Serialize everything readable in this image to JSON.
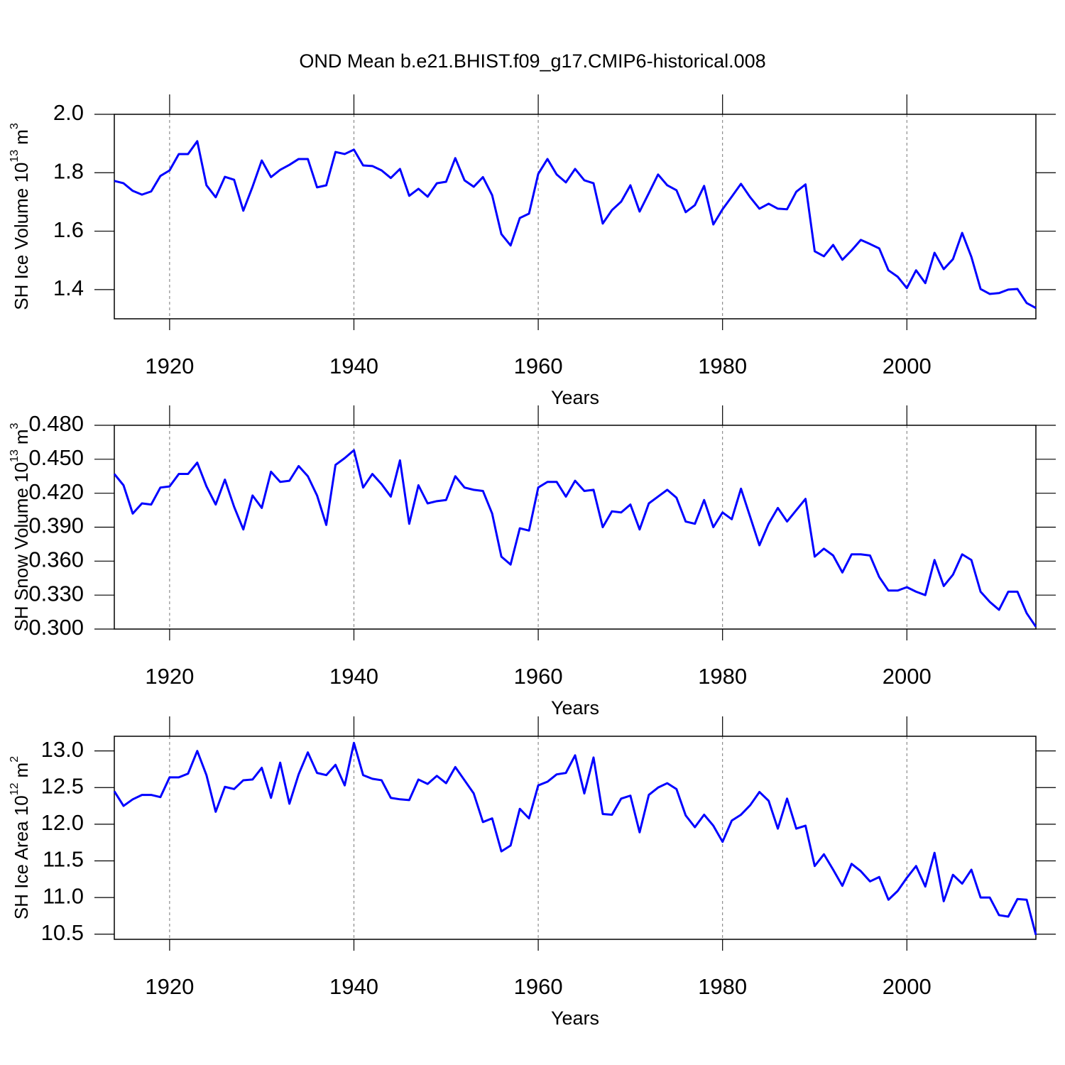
{
  "chart_data": [
    {
      "type": "line",
      "title": "OND Mean b.e21.BHIST.f09_g17.CMIP6-historical.008",
      "ylabel": "SH Ice Volume 10",
      "ylabel_exp": "13",
      "ylabel_unit": "m",
      "ylabel_unit_exp": "3",
      "xlabel": "Years",
      "color": "#0000ff",
      "grid": "x",
      "xlim": [
        1914,
        2014
      ],
      "xticks": [
        1920,
        1940,
        1960,
        1980,
        2000
      ],
      "ylim": [
        1.3,
        2.0
      ],
      "yticks": [
        1.4,
        1.6,
        1.8,
        {
          "value": 2,
          "label": "2.0"
        }
      ],
      "x": [
        1914,
        1915,
        1916,
        1917,
        1918,
        1919,
        1920,
        1921,
        1922,
        1923,
        1924,
        1925,
        1926,
        1927,
        1928,
        1929,
        1930,
        1931,
        1932,
        1933,
        1934,
        1935,
        1936,
        1937,
        1938,
        1939,
        1940,
        1941,
        1942,
        1943,
        1944,
        1945,
        1946,
        1947,
        1948,
        1949,
        1950,
        1951,
        1952,
        1953,
        1954,
        1955,
        1956,
        1957,
        1958,
        1959,
        1960,
        1961,
        1962,
        1963,
        1964,
        1965,
        1966,
        1967,
        1968,
        1969,
        1970,
        1971,
        1972,
        1973,
        1974,
        1975,
        1976,
        1977,
        1978,
        1979,
        1980,
        1981,
        1982,
        1983,
        1984,
        1985,
        1986,
        1987,
        1988,
        1989,
        1990,
        1991,
        1992,
        1993,
        1994,
        1995,
        1996,
        1997,
        1998,
        1999,
        2000,
        2001,
        2002,
        2003,
        2004,
        2005,
        2006,
        2007,
        2008,
        2009,
        2010,
        2011,
        2012,
        2013,
        2014
      ],
      "values": [
        1.772,
        1.764,
        1.738,
        1.725,
        1.736,
        1.789,
        1.808,
        1.864,
        1.864,
        1.908,
        1.757,
        1.716,
        1.786,
        1.776,
        1.67,
        1.752,
        1.842,
        1.785,
        1.81,
        1.827,
        1.847,
        1.847,
        1.75,
        1.757,
        1.871,
        1.864,
        1.879,
        1.825,
        1.823,
        1.808,
        1.782,
        1.813,
        1.721,
        1.745,
        1.718,
        1.764,
        1.769,
        1.85,
        1.774,
        1.752,
        1.785,
        1.723,
        1.59,
        1.551,
        1.645,
        1.66,
        1.796,
        1.847,
        1.794,
        1.767,
        1.813,
        1.774,
        1.764,
        1.626,
        1.672,
        1.701,
        1.757,
        1.667,
        1.73,
        1.794,
        1.757,
        1.74,
        1.665,
        1.689,
        1.755,
        1.623,
        1.675,
        1.718,
        1.762,
        1.716,
        1.677,
        1.694,
        1.677,
        1.675,
        1.735,
        1.76,
        1.531,
        1.514,
        1.553,
        1.502,
        1.534,
        1.57,
        1.556,
        1.541,
        1.466,
        1.444,
        1.405,
        1.466,
        1.422,
        1.526,
        1.47,
        1.504,
        1.594,
        1.512,
        1.402,
        1.385,
        1.388,
        1.4,
        1.402,
        1.354,
        1.337
      ]
    },
    {
      "type": "line",
      "ylabel": "SH Snow Volume 10",
      "ylabel_exp": "13",
      "ylabel_unit": "m",
      "ylabel_unit_exp": "3",
      "xlabel": "Years",
      "color": "#0000ff",
      "grid": "x",
      "xlim": [
        1914,
        2014
      ],
      "xticks": [
        1920,
        1940,
        1960,
        1980,
        2000
      ],
      "ylim": [
        0.3,
        0.48
      ],
      "yticks": [
        {
          "value": 0.3,
          "label": "0.300"
        },
        {
          "value": 0.33,
          "label": "0.330"
        },
        {
          "value": 0.36,
          "label": "0.360"
        },
        {
          "value": 0.39,
          "label": "0.390"
        },
        {
          "value": 0.42,
          "label": "0.420"
        },
        {
          "value": 0.45,
          "label": "0.450"
        },
        {
          "value": 0.48,
          "label": "0.480"
        }
      ],
      "x": [
        1914,
        1915,
        1916,
        1917,
        1918,
        1919,
        1920,
        1921,
        1922,
        1923,
        1924,
        1925,
        1926,
        1927,
        1928,
        1929,
        1930,
        1931,
        1932,
        1933,
        1934,
        1935,
        1936,
        1937,
        1938,
        1939,
        1940,
        1941,
        1942,
        1943,
        1944,
        1945,
        1946,
        1947,
        1948,
        1949,
        1950,
        1951,
        1952,
        1953,
        1954,
        1955,
        1956,
        1957,
        1958,
        1959,
        1960,
        1961,
        1962,
        1963,
        1964,
        1965,
        1966,
        1967,
        1968,
        1969,
        1970,
        1971,
        1972,
        1973,
        1974,
        1975,
        1976,
        1977,
        1978,
        1979,
        1980,
        1981,
        1982,
        1983,
        1984,
        1985,
        1986,
        1987,
        1988,
        1989,
        1990,
        1991,
        1992,
        1993,
        1994,
        1995,
        1996,
        1997,
        1998,
        1999,
        2000,
        2001,
        2002,
        2003,
        2004,
        2005,
        2006,
        2007,
        2008,
        2009,
        2010,
        2011,
        2012,
        2013,
        2014
      ],
      "values": [
        0.437,
        0.427,
        0.402,
        0.411,
        0.41,
        0.425,
        0.426,
        0.437,
        0.437,
        0.447,
        0.426,
        0.41,
        0.432,
        0.408,
        0.388,
        0.418,
        0.407,
        0.439,
        0.43,
        0.431,
        0.444,
        0.435,
        0.418,
        0.392,
        0.445,
        0.451,
        0.458,
        0.425,
        0.437,
        0.428,
        0.417,
        0.449,
        0.393,
        0.427,
        0.411,
        0.413,
        0.414,
        0.435,
        0.425,
        0.423,
        0.422,
        0.402,
        0.364,
        0.357,
        0.389,
        0.387,
        0.425,
        0.43,
        0.43,
        0.417,
        0.431,
        0.422,
        0.423,
        0.39,
        0.404,
        0.403,
        0.41,
        0.388,
        0.411,
        0.417,
        0.423,
        0.416,
        0.395,
        0.393,
        0.414,
        0.39,
        0.403,
        0.397,
        0.424,
        0.399,
        0.374,
        0.393,
        0.407,
        0.395,
        0.405,
        0.415,
        0.364,
        0.371,
        0.365,
        0.35,
        0.366,
        0.366,
        0.365,
        0.346,
        0.334,
        0.334,
        0.337,
        0.333,
        0.33,
        0.361,
        0.338,
        0.348,
        0.366,
        0.361,
        0.333,
        0.324,
        0.317,
        0.333,
        0.333,
        0.314,
        0.302
      ]
    },
    {
      "type": "line",
      "ylabel": "SH Ice Area 10",
      "ylabel_exp": "12",
      "ylabel_unit": "m",
      "ylabel_unit_exp": "2",
      "xlabel": "Years",
      "color": "#0000ff",
      "grid": "x",
      "xlim": [
        1914,
        2014
      ],
      "xticks": [
        1920,
        1940,
        1960,
        1980,
        2000
      ],
      "ylim": [
        10.43,
        13.2
      ],
      "yticks": [
        10.5,
        {
          "value": 11,
          "label": "11.0"
        },
        11.5,
        {
          "value": 12,
          "label": "12.0"
        },
        12.5,
        {
          "value": 13,
          "label": "13.0"
        }
      ],
      "x": [
        1914,
        1915,
        1916,
        1917,
        1918,
        1919,
        1920,
        1921,
        1922,
        1923,
        1924,
        1925,
        1926,
        1927,
        1928,
        1929,
        1930,
        1931,
        1932,
        1933,
        1934,
        1935,
        1936,
        1937,
        1938,
        1939,
        1940,
        1941,
        1942,
        1943,
        1944,
        1945,
        1946,
        1947,
        1948,
        1949,
        1950,
        1951,
        1952,
        1953,
        1954,
        1955,
        1956,
        1957,
        1958,
        1959,
        1960,
        1961,
        1962,
        1963,
        1964,
        1965,
        1966,
        1967,
        1968,
        1969,
        1970,
        1971,
        1972,
        1973,
        1974,
        1975,
        1976,
        1977,
        1978,
        1979,
        1980,
        1981,
        1982,
        1983,
        1984,
        1985,
        1986,
        1987,
        1988,
        1989,
        1990,
        1991,
        1992,
        1993,
        1994,
        1995,
        1996,
        1997,
        1998,
        1999,
        2000,
        2001,
        2002,
        2003,
        2004,
        2005,
        2006,
        2007,
        2008,
        2009,
        2010,
        2011,
        2012,
        2013,
        2014
      ],
      "values": [
        12.45,
        12.25,
        12.34,
        12.4,
        12.4,
        12.37,
        12.64,
        12.64,
        12.69,
        13.0,
        12.67,
        12.17,
        12.51,
        12.48,
        12.6,
        12.61,
        12.77,
        12.36,
        12.84,
        12.28,
        12.68,
        12.98,
        12.7,
        12.67,
        12.81,
        12.53,
        13.11,
        12.67,
        12.62,
        12.6,
        12.36,
        12.34,
        12.33,
        12.61,
        12.55,
        12.66,
        12.56,
        12.78,
        12.6,
        12.42,
        12.03,
        12.08,
        11.63,
        11.71,
        12.21,
        12.08,
        12.53,
        12.58,
        12.68,
        12.7,
        12.94,
        12.42,
        12.91,
        12.14,
        12.13,
        12.35,
        12.39,
        11.89,
        12.4,
        12.5,
        12.56,
        12.48,
        12.12,
        11.96,
        12.13,
        11.98,
        11.76,
        12.05,
        12.13,
        12.26,
        12.44,
        12.32,
        11.94,
        12.35,
        11.94,
        11.98,
        11.43,
        11.59,
        11.38,
        11.16,
        11.46,
        11.36,
        11.22,
        11.28,
        10.97,
        11.09,
        11.27,
        11.43,
        11.15,
        11.61,
        10.95,
        11.31,
        11.19,
        11.38,
        11.0,
        11.0,
        10.76,
        10.74,
        10.98,
        10.97,
        10.49
      ]
    }
  ]
}
